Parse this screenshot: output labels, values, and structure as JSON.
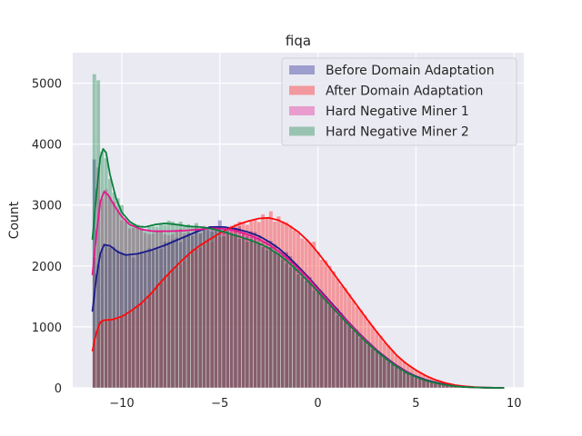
{
  "chart_data": {
    "type": "histogram",
    "title": "fiqa",
    "xlabel": "",
    "ylabel": "Count",
    "xlim": [
      -12.5,
      10.5
    ],
    "ylim": [
      0,
      5500
    ],
    "xticks": [
      -10,
      -5,
      0,
      5,
      10
    ],
    "xtick_labels": [
      "−10",
      "−5",
      "0",
      "5",
      "10"
    ],
    "yticks": [
      0,
      1000,
      2000,
      3000,
      4000,
      5000
    ],
    "ytick_labels": [
      "0",
      "1000",
      "2000",
      "3000",
      "4000",
      "5000"
    ],
    "grid": true,
    "legend_position": "top-right",
    "bin_range": [
      -11.5,
      9.5
    ],
    "bin_count": 105,
    "series": [
      {
        "name": "Before Domain Adaptation",
        "color": "#1a1a8c",
        "kde": [
          [
            -11.5,
            1250
          ],
          [
            -11.3,
            1800
          ],
          [
            -11.1,
            2200
          ],
          [
            -10.9,
            2350
          ],
          [
            -10.6,
            2330
          ],
          [
            -10.2,
            2230
          ],
          [
            -9.8,
            2180
          ],
          [
            -9.2,
            2200
          ],
          [
            -8.5,
            2260
          ],
          [
            -7.8,
            2340
          ],
          [
            -7.0,
            2450
          ],
          [
            -6.2,
            2560
          ],
          [
            -5.5,
            2640
          ],
          [
            -4.8,
            2640
          ],
          [
            -4.2,
            2610
          ],
          [
            -3.6,
            2560
          ],
          [
            -3.0,
            2490
          ],
          [
            -2.5,
            2400
          ],
          [
            -2.0,
            2290
          ],
          [
            -1.5,
            2150
          ],
          [
            -1.0,
            1990
          ],
          [
            -0.5,
            1820
          ],
          [
            0.0,
            1640
          ],
          [
            0.5,
            1460
          ],
          [
            1.0,
            1280
          ],
          [
            1.5,
            1100
          ],
          [
            2.0,
            930
          ],
          [
            2.5,
            770
          ],
          [
            3.0,
            620
          ],
          [
            3.5,
            490
          ],
          [
            4.0,
            370
          ],
          [
            4.5,
            270
          ],
          [
            5.0,
            190
          ],
          [
            5.5,
            130
          ],
          [
            6.0,
            90
          ],
          [
            6.5,
            55
          ],
          [
            7.0,
            30
          ],
          [
            7.5,
            15
          ],
          [
            8.0,
            8
          ],
          [
            8.5,
            4
          ],
          [
            9.0,
            2
          ],
          [
            9.5,
            0
          ]
        ]
      },
      {
        "name": "After Domain Adaptation",
        "color": "#ff0a0a",
        "kde": [
          [
            -11.5,
            600
          ],
          [
            -11.3,
            900
          ],
          [
            -11.1,
            1080
          ],
          [
            -10.9,
            1110
          ],
          [
            -10.5,
            1120
          ],
          [
            -10.0,
            1170
          ],
          [
            -9.5,
            1270
          ],
          [
            -9.0,
            1390
          ],
          [
            -8.5,
            1550
          ],
          [
            -8.0,
            1740
          ],
          [
            -7.5,
            1910
          ],
          [
            -7.0,
            2070
          ],
          [
            -6.5,
            2220
          ],
          [
            -6.0,
            2340
          ],
          [
            -5.5,
            2440
          ],
          [
            -5.0,
            2540
          ],
          [
            -4.5,
            2620
          ],
          [
            -4.0,
            2690
          ],
          [
            -3.5,
            2740
          ],
          [
            -3.0,
            2780
          ],
          [
            -2.5,
            2790
          ],
          [
            -2.0,
            2750
          ],
          [
            -1.5,
            2670
          ],
          [
            -1.0,
            2560
          ],
          [
            -0.5,
            2410
          ],
          [
            0.0,
            2220
          ],
          [
            0.5,
            2010
          ],
          [
            1.0,
            1790
          ],
          [
            1.5,
            1570
          ],
          [
            2.0,
            1350
          ],
          [
            2.5,
            1130
          ],
          [
            3.0,
            920
          ],
          [
            3.5,
            720
          ],
          [
            4.0,
            540
          ],
          [
            4.5,
            400
          ],
          [
            5.0,
            290
          ],
          [
            5.5,
            200
          ],
          [
            6.0,
            130
          ],
          [
            6.5,
            80
          ],
          [
            7.0,
            45
          ],
          [
            7.5,
            25
          ],
          [
            8.0,
            12
          ],
          [
            8.5,
            5
          ],
          [
            9.0,
            2
          ],
          [
            9.5,
            0
          ]
        ]
      },
      {
        "name": "Hard Negative Miner 1",
        "color": "#e6158c",
        "kde": [
          [
            -11.5,
            1850
          ],
          [
            -11.3,
            2500
          ],
          [
            -11.1,
            3050
          ],
          [
            -10.9,
            3220
          ],
          [
            -10.7,
            3170
          ],
          [
            -10.4,
            3000
          ],
          [
            -10.0,
            2810
          ],
          [
            -9.6,
            2680
          ],
          [
            -9.0,
            2600
          ],
          [
            -8.4,
            2570
          ],
          [
            -7.6,
            2570
          ],
          [
            -6.8,
            2580
          ],
          [
            -6.0,
            2600
          ],
          [
            -5.4,
            2620
          ],
          [
            -4.8,
            2610
          ],
          [
            -4.2,
            2580
          ],
          [
            -3.6,
            2520
          ],
          [
            -3.0,
            2440
          ],
          [
            -2.5,
            2350
          ],
          [
            -2.0,
            2240
          ],
          [
            -1.5,
            2110
          ],
          [
            -1.0,
            1960
          ],
          [
            -0.5,
            1800
          ],
          [
            0.0,
            1620
          ],
          [
            0.5,
            1440
          ],
          [
            1.0,
            1260
          ],
          [
            1.5,
            1090
          ],
          [
            2.0,
            920
          ],
          [
            2.5,
            760
          ],
          [
            3.0,
            610
          ],
          [
            3.5,
            480
          ],
          [
            4.0,
            360
          ],
          [
            4.5,
            260
          ],
          [
            5.0,
            180
          ],
          [
            5.5,
            120
          ],
          [
            6.0,
            80
          ],
          [
            6.5,
            50
          ],
          [
            7.0,
            28
          ],
          [
            7.5,
            14
          ],
          [
            8.0,
            7
          ],
          [
            8.5,
            3
          ],
          [
            9.0,
            1
          ],
          [
            9.5,
            0
          ]
        ]
      },
      {
        "name": "Hard Negative Miner 2",
        "color": "#0a7f3c",
        "kde": [
          [
            -11.5,
            2430
          ],
          [
            -11.3,
            3150
          ],
          [
            -11.1,
            3780
          ],
          [
            -10.95,
            3920
          ],
          [
            -10.8,
            3860
          ],
          [
            -10.6,
            3500
          ],
          [
            -10.3,
            3120
          ],
          [
            -10.0,
            2880
          ],
          [
            -9.6,
            2730
          ],
          [
            -9.2,
            2650
          ],
          [
            -8.8,
            2640
          ],
          [
            -8.3,
            2680
          ],
          [
            -7.8,
            2700
          ],
          [
            -7.2,
            2680
          ],
          [
            -6.6,
            2650
          ],
          [
            -6.0,
            2640
          ],
          [
            -5.4,
            2610
          ],
          [
            -4.8,
            2560
          ],
          [
            -4.2,
            2500
          ],
          [
            -3.6,
            2440
          ],
          [
            -3.0,
            2370
          ],
          [
            -2.5,
            2290
          ],
          [
            -2.0,
            2190
          ],
          [
            -1.5,
            2060
          ],
          [
            -1.0,
            1910
          ],
          [
            -0.5,
            1750
          ],
          [
            0.0,
            1580
          ],
          [
            0.5,
            1400
          ],
          [
            1.0,
            1230
          ],
          [
            1.5,
            1060
          ],
          [
            2.0,
            900
          ],
          [
            2.5,
            740
          ],
          [
            3.0,
            600
          ],
          [
            3.5,
            470
          ],
          [
            4.0,
            350
          ],
          [
            4.5,
            250
          ],
          [
            5.0,
            180
          ],
          [
            5.5,
            120
          ],
          [
            6.0,
            80
          ],
          [
            6.5,
            48
          ],
          [
            7.0,
            27
          ],
          [
            7.5,
            14
          ],
          [
            8.0,
            7
          ],
          [
            8.5,
            3
          ],
          [
            9.0,
            1
          ],
          [
            9.5,
            0
          ]
        ]
      }
    ],
    "bar_spikes": [
      {
        "series": 3,
        "x": -11.4,
        "value": 5150
      },
      {
        "series": 3,
        "x": -11.2,
        "value": 5050
      },
      {
        "series": 0,
        "x": -11.4,
        "value": 3750
      },
      {
        "series": 2,
        "x": -11.2,
        "value": 3620
      },
      {
        "series": 3,
        "x": -10.0,
        "value": 3000
      },
      {
        "series": 1,
        "x": -2.4,
        "value": 2900
      },
      {
        "series": 1,
        "x": -2.8,
        "value": 2850
      },
      {
        "series": 1,
        "x": -3.6,
        "value": 2680
      },
      {
        "series": 0,
        "x": -5.0,
        "value": 2750
      },
      {
        "series": 1,
        "x": -0.2,
        "value": 2400
      }
    ]
  }
}
